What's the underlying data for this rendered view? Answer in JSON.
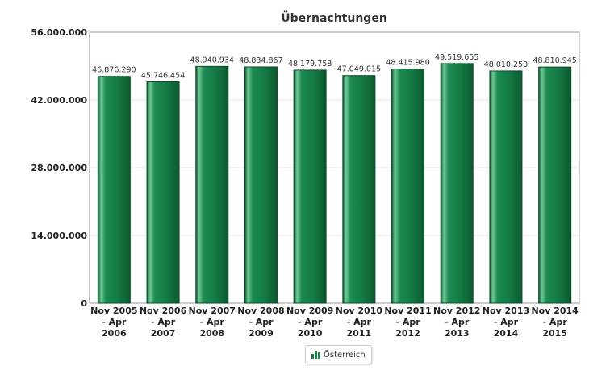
{
  "chart_data": {
    "type": "bar",
    "title": "Übernachtungen",
    "xlabel": "",
    "ylabel": "",
    "categories": [
      [
        "Nov 2005",
        "- Apr",
        "2006"
      ],
      [
        "Nov 2006",
        "- Apr",
        "2007"
      ],
      [
        "Nov 2007",
        "- Apr",
        "2008"
      ],
      [
        "Nov 2008",
        "- Apr",
        "2009"
      ],
      [
        "Nov 2009",
        "- Apr",
        "2010"
      ],
      [
        "Nov 2010",
        "- Apr",
        "2011"
      ],
      [
        "Nov 2011",
        "- Apr",
        "2012"
      ],
      [
        "Nov 2012",
        "- Apr",
        "2013"
      ],
      [
        "Nov 2013",
        "- Apr",
        "2014"
      ],
      [
        "Nov 2014",
        "- Apr",
        "2015"
      ]
    ],
    "series": [
      {
        "name": "Österreich",
        "color": "#1a7f4b",
        "values": [
          46876290,
          45746454,
          48940934,
          48834867,
          48179758,
          47049015,
          48415980,
          49519655,
          48010250,
          48810945
        ],
        "labels": [
          "46.876.290",
          "45.746.454",
          "48.940.934",
          "48.834.867",
          "48.179.758",
          "47.049.015",
          "48.415.980",
          "49.519.655",
          "48.010.250",
          "48.810.945"
        ]
      }
    ],
    "ylim": [
      0,
      56000000
    ],
    "yticks": [
      0,
      14000000,
      28000000,
      42000000,
      56000000
    ],
    "ytick_labels": [
      "0",
      "14.000.000",
      "28.000.000",
      "42.000.000",
      "56.000.000"
    ],
    "grid": true,
    "legend_position": "bottom-center"
  }
}
